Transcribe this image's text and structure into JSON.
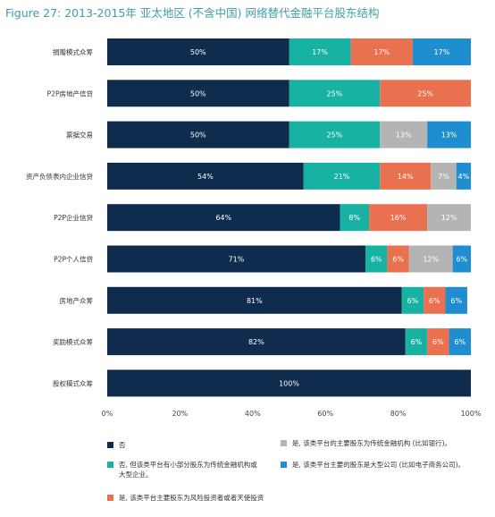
{
  "title": "Figure 27: 2013-2015年 亚太地区 (不含中国) 网络替代金融平台股东结构",
  "chart_data": {
    "type": "bar",
    "orientation": "horizontal",
    "stacked": true,
    "categories": [
      "捐赠模式众筹",
      "P2P房地产信贷",
      "票据交易",
      "资产负债表内企业信贷",
      "P2P企业信贷",
      "P2P个人信贷",
      "房地产众筹",
      "奖励模式众筹",
      "股权模式众筹"
    ],
    "series": [
      {
        "name": "否",
        "color": "#0f2b4e",
        "values": [
          50,
          50,
          50,
          54,
          64,
          71,
          81,
          82,
          100
        ]
      },
      {
        "name": "否, 但该类平台有小部分股东为传统金融机构或大型企业。",
        "color": "#18b2a3",
        "values": [
          17,
          25,
          25,
          21,
          8,
          6,
          6,
          6,
          0
        ]
      },
      {
        "name": "是, 该类平台主要股东为风险投资者或者天使投资",
        "color": "#ea7150",
        "values": [
          17,
          25,
          0,
          14,
          16,
          6,
          6,
          6,
          0
        ]
      },
      {
        "name": "是, 该类平台的主要股东为传统金融机构 (比如银行)。",
        "color": "#b4b4b4",
        "values": [
          0,
          0,
          13,
          7,
          12,
          12,
          0,
          0,
          0
        ]
      },
      {
        "name": "是, 该类平台主要的股东是大型公司 (比如电子商务公司)。",
        "color": "#1f8ed0",
        "values": [
          17,
          0,
          13,
          4,
          0,
          6,
          6,
          6,
          0
        ]
      }
    ],
    "xlim": [
      0,
      100
    ],
    "xticks": [
      "0%",
      "20%",
      "40%",
      "60%",
      "80%",
      "100%"
    ],
    "legend_position": "bottom"
  },
  "legend": [
    {
      "color": "#0f2b4e",
      "label_lines": [
        "否"
      ]
    },
    {
      "color": "#b4b4b4",
      "label_lines": [
        "是, 该类平台的主要股东为传统金融机构 (比如银行)。"
      ]
    },
    {
      "color": "#18b2a3",
      "label_lines": [
        "否, 但该类平台有小部分股东为传统金融机构或",
        "大型企业。"
      ]
    },
    {
      "color": "#1f8ed0",
      "label_lines": [
        "是, 该类平台主要的股东是大型公司 (比如电子商务公司)。"
      ]
    },
    {
      "color": "#ea7150",
      "label_lines": [
        "是, 该类平台主要股东为风险投资者或者天使投资"
      ]
    }
  ]
}
